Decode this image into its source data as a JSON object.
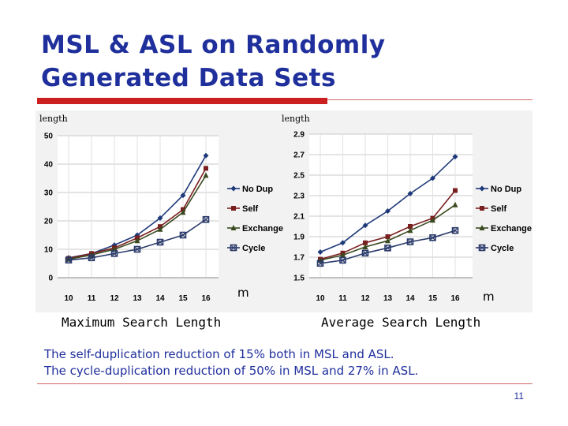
{
  "slide": {
    "title": "MSL & ASL on Randomly Generated Data Sets",
    "notes": [
      "The self-duplication reduction of 15% both in MSL and ASL.",
      "The cycle-duplication reduction of 50% in MSL and 27% in ASL."
    ],
    "page_number": "11",
    "colors": {
      "title": "#1f2f9c",
      "accent_bar": "#cc1f1f"
    }
  },
  "chart_data": [
    {
      "type": "line",
      "title": "",
      "caption": "Maximum Search Length",
      "ylabel": "length",
      "xlabel": "m",
      "x": [
        10,
        11,
        12,
        13,
        14,
        15,
        16
      ],
      "ylim": [
        0,
        50
      ],
      "yticks": [
        0,
        10,
        20,
        30,
        40,
        50
      ],
      "grid": true,
      "legend_position": "right",
      "series": [
        {
          "name": "No Dup",
          "color": "#1f3a7a",
          "marker": "diamond",
          "values": [
            7,
            8.5,
            11.5,
            15,
            21,
            29,
            43
          ]
        },
        {
          "name": "Self",
          "color": "#7a1f1f",
          "marker": "square",
          "values": [
            6.8,
            8.5,
            10.5,
            14,
            18,
            24,
            38.5
          ]
        },
        {
          "name": "Exchange",
          "color": "#3a4a1f",
          "marker": "triangle",
          "values": [
            6.5,
            8,
            10,
            13,
            17,
            23,
            36
          ]
        },
        {
          "name": "Cycle",
          "color": "#2a3a6a",
          "marker": "x-square",
          "values": [
            6.2,
            7,
            8.5,
            10,
            12.5,
            15,
            20.5
          ]
        }
      ]
    },
    {
      "type": "line",
      "title": "",
      "caption": "Average Search Length",
      "ylabel": "length",
      "xlabel": "m",
      "x": [
        10,
        11,
        12,
        13,
        14,
        15,
        16
      ],
      "ylim": [
        1.5,
        2.9
      ],
      "yticks": [
        1.5,
        1.7,
        1.9,
        2.1,
        2.3,
        2.5,
        2.7,
        2.9
      ],
      "grid": true,
      "legend_position": "right",
      "series": [
        {
          "name": "No Dup",
          "color": "#1f3a7a",
          "marker": "diamond",
          "values": [
            1.75,
            1.84,
            2.01,
            2.15,
            2.32,
            2.47,
            2.68
          ]
        },
        {
          "name": "Self",
          "color": "#7a1f1f",
          "marker": "square",
          "values": [
            1.68,
            1.74,
            1.84,
            1.9,
            2.0,
            2.08,
            2.35
          ]
        },
        {
          "name": "Exchange",
          "color": "#3a4a1f",
          "marker": "triangle",
          "values": [
            1.67,
            1.72,
            1.8,
            1.86,
            1.96,
            2.06,
            2.21
          ]
        },
        {
          "name": "Cycle",
          "color": "#2a3a6a",
          "marker": "x-square",
          "values": [
            1.64,
            1.67,
            1.74,
            1.79,
            1.85,
            1.89,
            1.96
          ]
        }
      ]
    }
  ]
}
